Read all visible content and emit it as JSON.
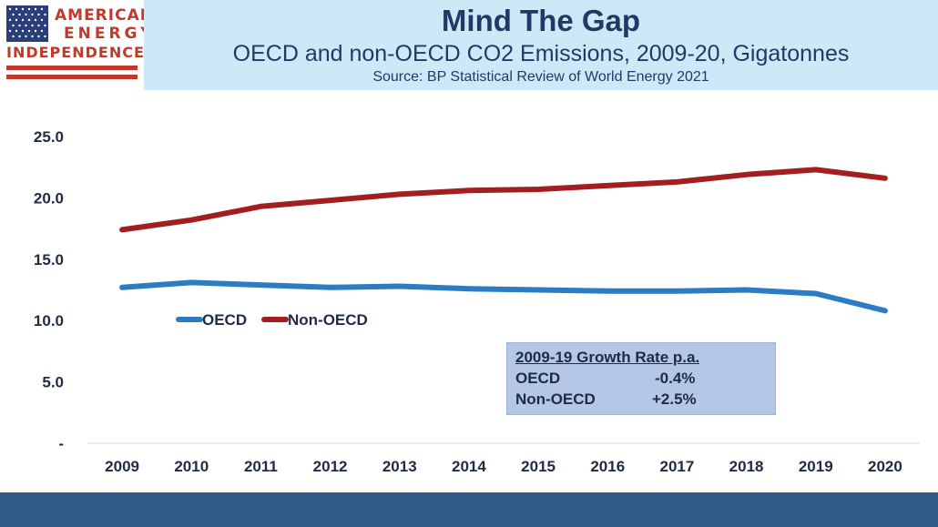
{
  "logo": {
    "line1": "AMERICAN",
    "line2": "ENERGY",
    "line3": "INDEPENDENCE"
  },
  "header": {
    "title": "Mind The Gap",
    "subtitle": "OECD and non-OECD CO2 Emissions, 2009-20, Gigatonnes",
    "source": "Source: BP Statistical Review of World Energy 2021"
  },
  "growth_box": {
    "heading": "2009-19 Growth Rate p.a.",
    "rows": [
      {
        "label": "OECD",
        "value": "-0.4%"
      },
      {
        "label": "Non-OECD",
        "value": "+2.5%"
      }
    ]
  },
  "colors": {
    "oecd": "#2b7cc3",
    "non_oecd": "#a31f1f",
    "axis_text": "#1f2a44",
    "header_band": "#cfe8f7",
    "footer_bar": "#2f5b8a"
  },
  "chart_data": {
    "type": "line",
    "title": "Mind The Gap",
    "subtitle": "OECD and non-OECD CO2 Emissions, 2009-20, Gigatonnes",
    "categories": [
      "2009",
      "2010",
      "2011",
      "2012",
      "2013",
      "2014",
      "2015",
      "2016",
      "2017",
      "2018",
      "2019",
      "2020"
    ],
    "y_tick_labels": [
      "-",
      "5.0",
      "10.0",
      "15.0",
      "20.0",
      "25.0"
    ],
    "y_ticks": [
      0,
      5,
      10,
      15,
      20,
      25
    ],
    "ylim": [
      0,
      25
    ],
    "grid": false,
    "legend_position": "left-center",
    "series": [
      {
        "name": "OECD",
        "color": "#2b7cc3",
        "values": [
          12.7,
          13.1,
          12.9,
          12.7,
          12.8,
          12.6,
          12.5,
          12.4,
          12.4,
          12.5,
          12.2,
          10.8
        ]
      },
      {
        "name": "Non-OECD",
        "color": "#a31f1f",
        "values": [
          17.4,
          18.2,
          19.3,
          19.8,
          20.3,
          20.6,
          20.7,
          21.0,
          21.3,
          21.9,
          22.3,
          21.6
        ]
      }
    ]
  }
}
